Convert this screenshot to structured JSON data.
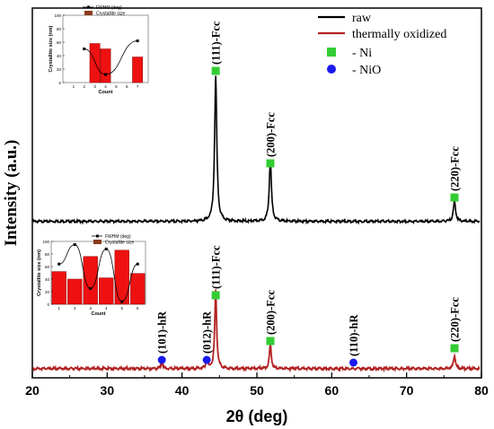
{
  "chart_data": {
    "type": "line",
    "xlabel": "2θ (deg)",
    "ylabel": "Intensity (a.u.)",
    "xlim": [
      20,
      80
    ],
    "xticks": [
      "20",
      "30",
      "40",
      "50",
      "60",
      "70",
      "80"
    ],
    "grid": false,
    "legend": {
      "placement": "top-right",
      "entries": [
        {
          "label": "raw",
          "color": "#000000",
          "kind": "line"
        },
        {
          "label": "thermally oxidized",
          "color": "#b22222",
          "kind": "line"
        },
        {
          "label": "- Ni",
          "color": "#33cc33",
          "kind": "square"
        },
        {
          "label": "- NiO",
          "color": "#1a1aee",
          "kind": "circle"
        }
      ]
    },
    "series": [
      {
        "name": "raw",
        "color": "#000000",
        "baseline": 0.0,
        "peaks": [
          {
            "x": 44.5,
            "h": 1.0,
            "w": 0.35
          },
          {
            "x": 51.8,
            "h": 0.42,
            "w": 0.35
          },
          {
            "x": 76.4,
            "h": 0.14,
            "w": 0.35
          }
        ]
      },
      {
        "name": "thermally oxidized",
        "color": "#b22222",
        "baseline": 0.0,
        "peaks": [
          {
            "x": 37.3,
            "h": 0.04,
            "w": 0.3
          },
          {
            "x": 43.3,
            "h": 0.05,
            "w": 0.3
          },
          {
            "x": 44.5,
            "h": 0.52,
            "w": 0.3
          },
          {
            "x": 51.8,
            "h": 0.16,
            "w": 0.3
          },
          {
            "x": 76.4,
            "h": 0.09,
            "w": 0.3
          }
        ]
      }
    ],
    "annotations_raw": [
      {
        "label": "(111)-Fcc",
        "x": 44.5,
        "marker": "square"
      },
      {
        "label": "(200)-Fcc",
        "x": 51.8,
        "marker": "square"
      },
      {
        "label": "(220)-Fcc",
        "x": 76.4,
        "marker": "square"
      }
    ],
    "annotations_oxidized": [
      {
        "label": "(101)-hR",
        "x": 37.3,
        "marker": "circle"
      },
      {
        "label": "(012)-hR",
        "x": 43.3,
        "marker": "circle"
      },
      {
        "label": "(111)-Fcc",
        "x": 44.5,
        "marker": "square"
      },
      {
        "label": "(200)-Fcc",
        "x": 51.8,
        "marker": "square"
      },
      {
        "label": "(110)-hR",
        "x": 62.9,
        "marker": "circle"
      },
      {
        "label": "(220)-Fcc",
        "x": 76.4,
        "marker": "square"
      }
    ],
    "insets": [
      {
        "name": "inset-raw",
        "ylabel": "Crystallite size (nm)",
        "xlabel": "Count",
        "xlim": [
          0,
          8
        ],
        "ylim": [
          0,
          100
        ],
        "yticks": [
          "0",
          "20",
          "40",
          "60",
          "80",
          "100"
        ],
        "xticks": [
          "1",
          "2",
          "3",
          "4",
          "5",
          "6",
          "7"
        ],
        "legend": [
          "FWHM (deg)",
          "Crystallite size"
        ],
        "bars": [
          {
            "x": 3,
            "v": 58
          },
          {
            "x": 4,
            "v": 50
          },
          {
            "x": 7,
            "v": 38
          }
        ],
        "fwhm": [
          {
            "x": 2,
            "v": 50
          },
          {
            "x": 4,
            "v": 12
          },
          {
            "x": 7,
            "v": 62
          }
        ]
      },
      {
        "name": "inset-oxidized",
        "ylabel": "Crystallite size (nm)",
        "xlabel": "Count",
        "xlim": [
          0.5,
          6.5
        ],
        "ylim": [
          0,
          100
        ],
        "yticks": [
          "0",
          "20",
          "40",
          "60",
          "80",
          "100"
        ],
        "xticks": [
          "1",
          "2",
          "3",
          "4",
          "5",
          "6"
        ],
        "legend": [
          "FWHM (deg)",
          "Crystallite size"
        ],
        "bars": [
          {
            "x": 1,
            "v": 52
          },
          {
            "x": 2,
            "v": 40
          },
          {
            "x": 3,
            "v": 76
          },
          {
            "x": 4,
            "v": 42
          },
          {
            "x": 5,
            "v": 86
          },
          {
            "x": 6,
            "v": 49
          }
        ],
        "fwhm": [
          {
            "x": 1,
            "v": 64
          },
          {
            "x": 2,
            "v": 95
          },
          {
            "x": 3,
            "v": 25
          },
          {
            "x": 4,
            "v": 88
          },
          {
            "x": 5,
            "v": 4
          },
          {
            "x": 6,
            "v": 64
          }
        ]
      }
    ]
  }
}
